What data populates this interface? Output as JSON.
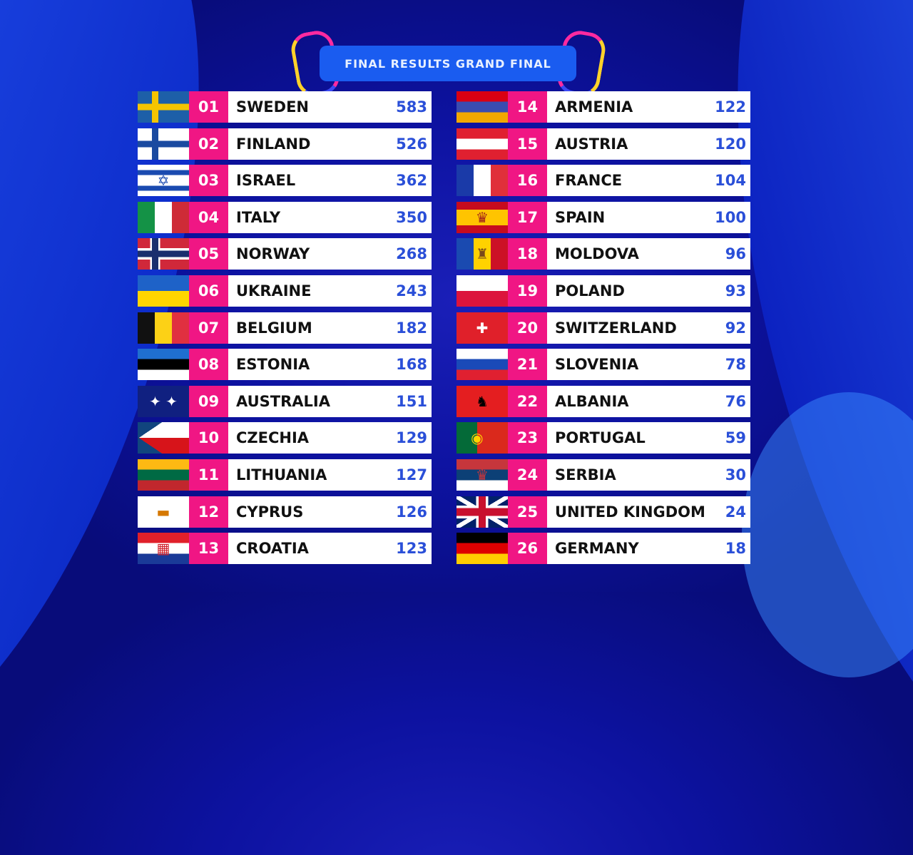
{
  "title": "FINAL RESULTS GRAND FINAL",
  "colors": {
    "rank_bg": "#f01684",
    "score": "#2a4fd8",
    "banner": "#1a5cf0"
  },
  "results": [
    {
      "rank": "01",
      "country": "SWEDEN",
      "points": "583",
      "flag": {
        "type": "cross",
        "bg": "#1d5fa8",
        "fg": "#f5c400"
      }
    },
    {
      "rank": "02",
      "country": "FINLAND",
      "points": "526",
      "flag": {
        "type": "cross",
        "bg": "#ffffff",
        "fg": "#1a4aa0"
      }
    },
    {
      "rank": "03",
      "country": "ISRAEL",
      "points": "362",
      "flag": {
        "type": "h",
        "colors": [
          "#ffffff",
          "#1a4ab0",
          "#ffffff",
          "#ffffff",
          "#1a4ab0",
          "#ffffff"
        ],
        "emblem": "✡",
        "emblem_color": "#1a4ab0"
      }
    },
    {
      "rank": "04",
      "country": "ITALY",
      "points": "350",
      "flag": {
        "type": "v",
        "colors": [
          "#149246",
          "#ffffff",
          "#ce2b37"
        ]
      }
    },
    {
      "rank": "05",
      "country": "NORWAY",
      "points": "268",
      "flag": {
        "type": "cross",
        "bg": "#d0283a",
        "fg": "#1a2f6e",
        "border": "#ffffff"
      }
    },
    {
      "rank": "06",
      "country": "UKRAINE",
      "points": "243",
      "flag": {
        "type": "h",
        "colors": [
          "#1e62c8",
          "#ffd500"
        ]
      }
    },
    {
      "rank": "07",
      "country": "BELGIUM",
      "points": "182",
      "flag": {
        "type": "v",
        "colors": [
          "#111111",
          "#fcd116",
          "#e03040"
        ]
      }
    },
    {
      "rank": "08",
      "country": "ESTONIA",
      "points": "168",
      "flag": {
        "type": "h",
        "colors": [
          "#1f6fd0",
          "#000000",
          "#ffffff"
        ]
      }
    },
    {
      "rank": "09",
      "country": "AUSTRALIA",
      "points": "151",
      "flag": {
        "type": "h",
        "colors": [
          "#102080"
        ],
        "emblem": "✦ ✦",
        "emblem_color": "#ffffff"
      }
    },
    {
      "rank": "10",
      "country": "CZECHIA",
      "points": "129",
      "flag": {
        "type": "czech"
      }
    },
    {
      "rank": "11",
      "country": "LITHUANIA",
      "points": "127",
      "flag": {
        "type": "h",
        "colors": [
          "#fdb913",
          "#006a44",
          "#c1272d"
        ]
      }
    },
    {
      "rank": "12",
      "country": "CYPRUS",
      "points": "126",
      "flag": {
        "type": "h",
        "colors": [
          "#ffffff"
        ],
        "emblem": "▬",
        "emblem_color": "#d57800"
      }
    },
    {
      "rank": "13",
      "country": "CROATIA",
      "points": "123",
      "flag": {
        "type": "h",
        "colors": [
          "#e0202a",
          "#ffffff",
          "#1a3a98"
        ],
        "emblem": "▦",
        "emblem_color": "#d0202a"
      }
    },
    {
      "rank": "14",
      "country": "ARMENIA",
      "points": "122",
      "flag": {
        "type": "h",
        "colors": [
          "#d90012",
          "#3a4cb0",
          "#f2a800"
        ]
      }
    },
    {
      "rank": "15",
      "country": "AUSTRIA",
      "points": "120",
      "flag": {
        "type": "h",
        "colors": [
          "#e02030",
          "#ffffff",
          "#e02030"
        ]
      }
    },
    {
      "rank": "16",
      "country": "FRANCE",
      "points": "104",
      "flag": {
        "type": "v",
        "colors": [
          "#1a3aa8",
          "#ffffff",
          "#e0303a"
        ]
      }
    },
    {
      "rank": "17",
      "country": "SPAIN",
      "points": "100",
      "flag": {
        "type": "h",
        "colors": [
          "#c60b1e",
          "#ffc400",
          "#ffc400",
          "#c60b1e"
        ],
        "emblem": "♛",
        "emblem_color": "#a0201a"
      }
    },
    {
      "rank": "18",
      "country": "MOLDOVA",
      "points": "96",
      "flag": {
        "type": "v",
        "colors": [
          "#1a4ab0",
          "#ffd200",
          "#cc1126"
        ],
        "emblem": "♜",
        "emblem_color": "#7a4a1a"
      }
    },
    {
      "rank": "19",
      "country": "POLAND",
      "points": "93",
      "flag": {
        "type": "h",
        "colors": [
          "#ffffff",
          "#dc143c"
        ]
      }
    },
    {
      "rank": "20",
      "country": "SWITZERLAND",
      "points": "92",
      "flag": {
        "type": "h",
        "colors": [
          "#e0202a"
        ],
        "emblem": "✚",
        "emblem_color": "#ffffff"
      }
    },
    {
      "rank": "21",
      "country": "SLOVENIA",
      "points": "78",
      "flag": {
        "type": "h",
        "colors": [
          "#ffffff",
          "#1a4ab8",
          "#e02030"
        ]
      }
    },
    {
      "rank": "22",
      "country": "ALBANIA",
      "points": "76",
      "flag": {
        "type": "h",
        "colors": [
          "#e41e20"
        ],
        "emblem": "♞",
        "emblem_color": "#000000"
      }
    },
    {
      "rank": "23",
      "country": "PORTUGAL",
      "points": "59",
      "flag": {
        "type": "v2",
        "colors": [
          "#046a38",
          "#da291c"
        ],
        "emblem": "◉",
        "emblem_color": "#ffd200"
      }
    },
    {
      "rank": "24",
      "country": "SERBIA",
      "points": "30",
      "flag": {
        "type": "h",
        "colors": [
          "#c6363c",
          "#0c4076",
          "#ffffff"
        ],
        "emblem": "♛",
        "emblem_color": "#c6363c"
      }
    },
    {
      "rank": "25",
      "country": "UNITED KINGDOM",
      "points": "24",
      "flag": {
        "type": "uk"
      }
    },
    {
      "rank": "26",
      "country": "GERMANY",
      "points": "18",
      "flag": {
        "type": "h",
        "colors": [
          "#000000",
          "#dd0000",
          "#ffce00"
        ]
      }
    }
  ]
}
